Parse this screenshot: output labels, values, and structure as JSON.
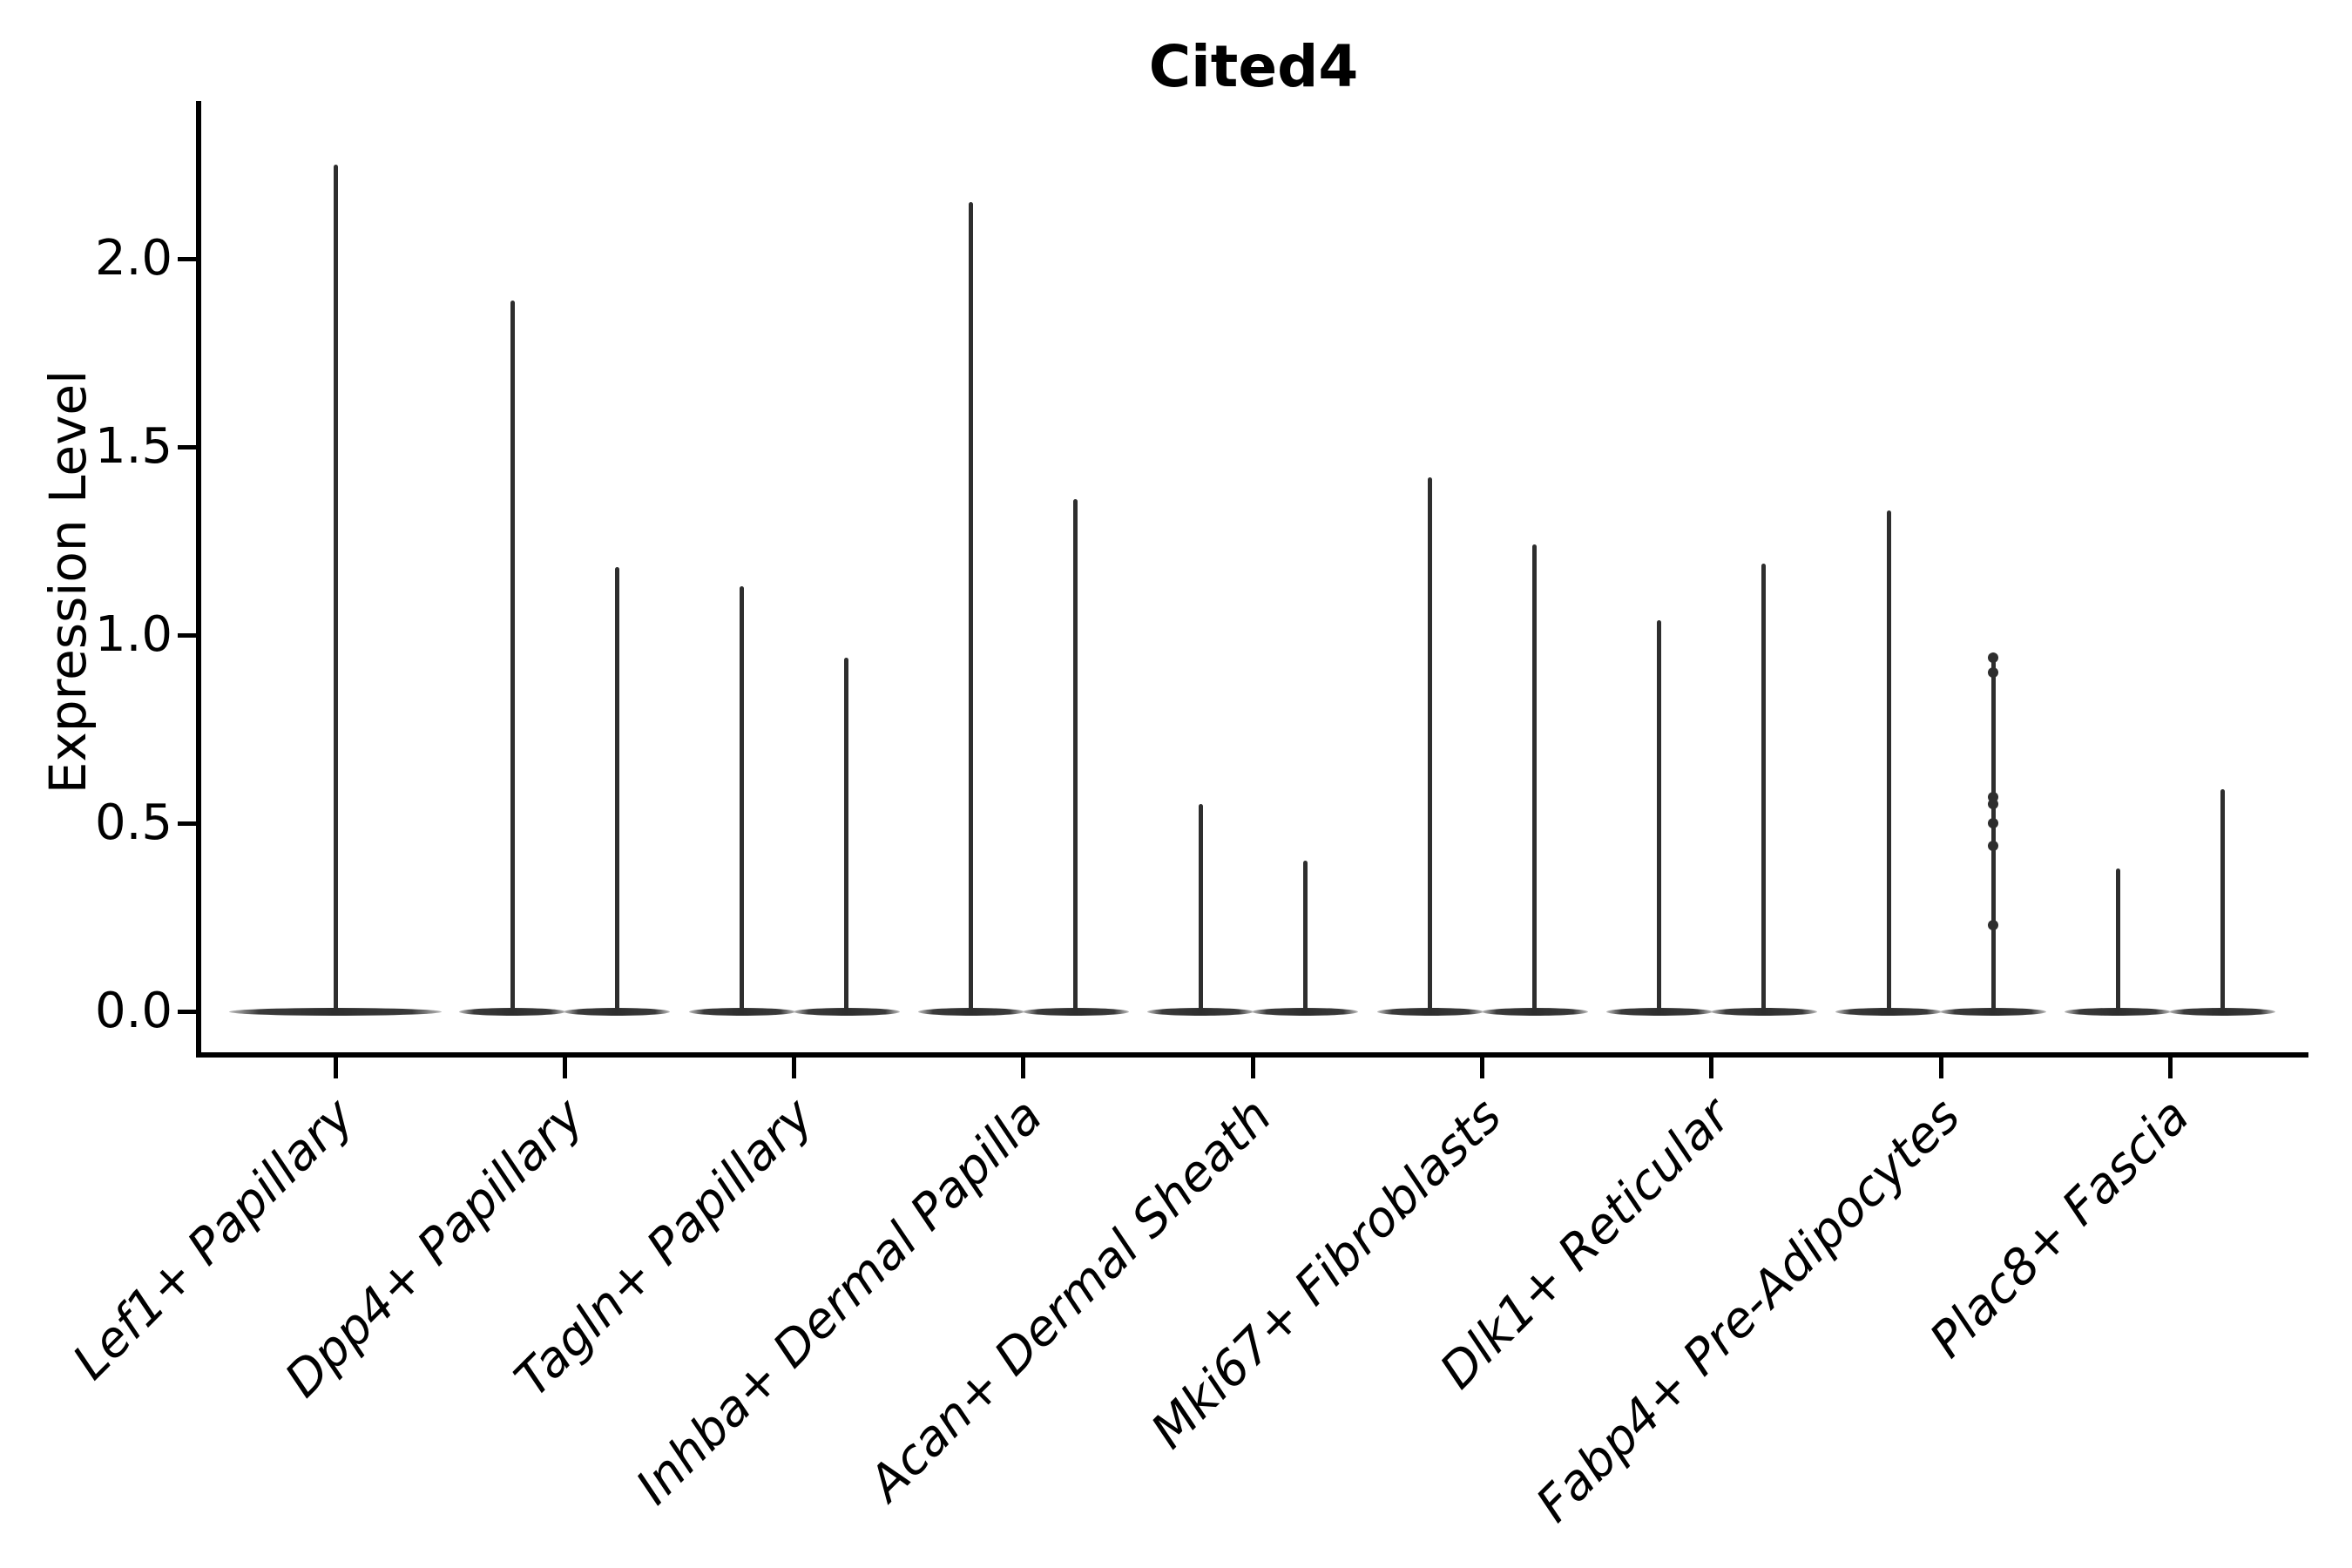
{
  "figure": {
    "title": "Cited4",
    "y_axis_label": "Expression Level"
  },
  "chart_data": {
    "type": "violin",
    "title": "Cited4",
    "xlabel": "",
    "ylabel": "Expression Level",
    "ylim": [
      -0.12,
      2.41
    ],
    "yticks": [
      0.0,
      0.5,
      1.0,
      1.5,
      2.0
    ],
    "yticklabels": [
      "0.0",
      "0.5",
      "1.0",
      "1.5",
      "2.0"
    ],
    "grid": false,
    "legend": "none",
    "categories": [
      "Lef1+ Papillary",
      "Dpp4+ Papillary",
      "Tagln+ Papillary",
      "Inhba+ Dermal Papilla",
      "Acan+ Dermal Sheath",
      "Mki67+ Fibroblasts",
      "Dlk1+ Reticular",
      "Fabp4+ Pre-Adipocytes",
      "Plac8+ Fascia"
    ],
    "baseline_value": 0.0,
    "description": "Each violin collapses to a flat horizontal disc at expression 0 with a thin vertical spike rising to the group's maximum expression. Categories hold two side-by-side violins except the first, which has a single centered violin.",
    "series": [
      {
        "category": "Lef1+ Papillary",
        "violins": [
          {
            "max": 2.25
          }
        ]
      },
      {
        "category": "Dpp4+ Papillary",
        "violins": [
          {
            "max": 1.89
          },
          {
            "max": 1.18
          }
        ]
      },
      {
        "category": "Tagln+ Papillary",
        "violins": [
          {
            "max": 1.13
          },
          {
            "max": 0.94
          }
        ]
      },
      {
        "category": "Inhba+ Dermal Papilla",
        "violins": [
          {
            "max": 2.15
          },
          {
            "max": 1.36
          }
        ]
      },
      {
        "category": "Acan+ Dermal Sheath",
        "violins": [
          {
            "max": 0.55
          },
          {
            "max": 0.4
          }
        ]
      },
      {
        "category": "Mki67+ Fibroblasts",
        "violins": [
          {
            "max": 1.42
          },
          {
            "max": 1.24
          }
        ]
      },
      {
        "category": "Dlk1+ Reticular",
        "violins": [
          {
            "max": 1.04
          },
          {
            "max": 1.19
          }
        ]
      },
      {
        "category": "Fabp4+ Pre-Adipocytes",
        "violins": [
          {
            "max": 1.33
          },
          {
            "max": 0.94,
            "points": [
              0.94,
              0.9,
              0.57,
              0.55,
              0.5,
              0.44,
              0.23
            ]
          }
        ]
      },
      {
        "category": "Plac8+ Fascia",
        "violins": [
          {
            "max": 0.38
          },
          {
            "max": 0.59
          }
        ]
      }
    ]
  },
  "colors": {
    "background": "#ffffff",
    "violin": "#2e2e2e",
    "violin_tip": "#bdbdbd",
    "axis": "#000000",
    "text": "#000000"
  }
}
